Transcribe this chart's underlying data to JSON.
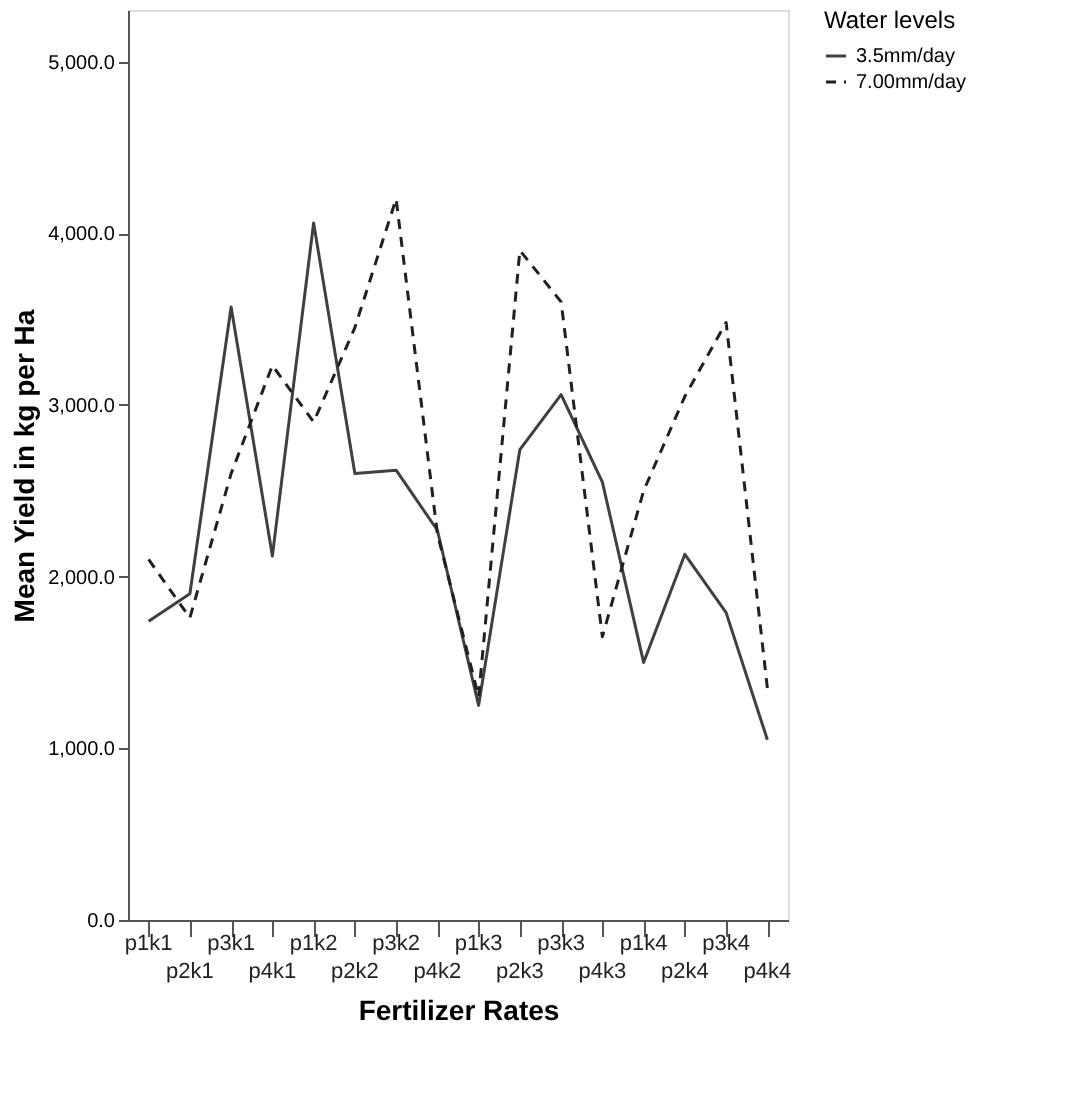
{
  "chart_data": {
    "type": "line",
    "xlabel": "Fertilizer Rates",
    "ylabel": "Mean Yield in kg per Ha",
    "legend_title": "Water levels",
    "legend": "top right",
    "grid": false,
    "categories": [
      "p1k1",
      "p2k1",
      "p3k1",
      "p4k1",
      "p1k2",
      "p2k2",
      "p3k2",
      "p4k2",
      "p1k3",
      "p2k3",
      "p3k3",
      "p4k3",
      "p1k4",
      "p2k4",
      "p3k4",
      "p4k4"
    ],
    "ylim": [
      0,
      5300
    ],
    "yticks": [
      {
        "value": 0,
        "label": "0.0"
      },
      {
        "value": 1000,
        "label": "1,000.0"
      },
      {
        "value": 2000,
        "label": "2,000.0"
      },
      {
        "value": 3000,
        "label": "3,000.0"
      },
      {
        "value": 4000,
        "label": "4,000.0"
      },
      {
        "value": 5000,
        "label": "5,000.0"
      }
    ],
    "series": [
      {
        "name": "3.5mm/day",
        "color": "#404040",
        "line_style": "solid",
        "values": [
          1740,
          1900,
          3570,
          2120,
          4060,
          2600,
          2620,
          2270,
          1250,
          2740,
          3060,
          2550,
          1500,
          2130,
          1790,
          1050
        ]
      },
      {
        "name": "7.00mm/day",
        "color": "#202020",
        "line_style": "dashed",
        "values": [
          2100,
          1760,
          2600,
          3230,
          2900,
          3450,
          4200,
          2250,
          1300,
          3900,
          3600,
          1650,
          2500,
          3050,
          3480,
          1350
        ]
      }
    ]
  }
}
